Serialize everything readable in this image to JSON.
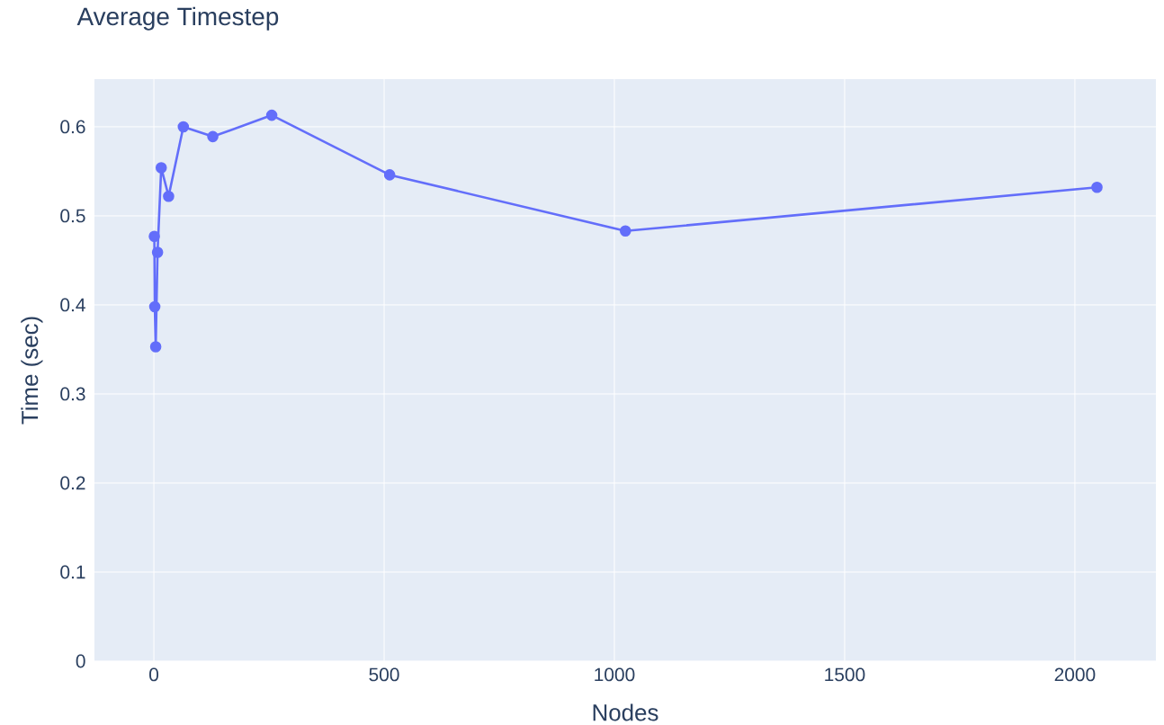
{
  "chart_data": {
    "type": "line",
    "title": "Average Timestep",
    "xlabel": "Nodes",
    "ylabel": "Time (sec)",
    "x": [
      1,
      2,
      4,
      8,
      16,
      32,
      64,
      128,
      256,
      512,
      1024,
      2048
    ],
    "series": [
      {
        "color": "#636efa",
        "values": [
          0.477,
          0.398,
          0.353,
          0.459,
          0.554,
          0.522,
          0.6,
          0.589,
          0.613,
          0.546,
          0.483,
          0.532
        ]
      }
    ],
    "xlim": [
      -129,
      2176
    ],
    "ylim": [
      0,
      0.6535
    ],
    "xticks": [
      0,
      500,
      1000,
      1500,
      2000
    ],
    "yticks": [
      0,
      0.1,
      0.2,
      0.3,
      0.4,
      0.5,
      0.6
    ],
    "grid": true,
    "marker": "circle",
    "line_style": "solid"
  }
}
